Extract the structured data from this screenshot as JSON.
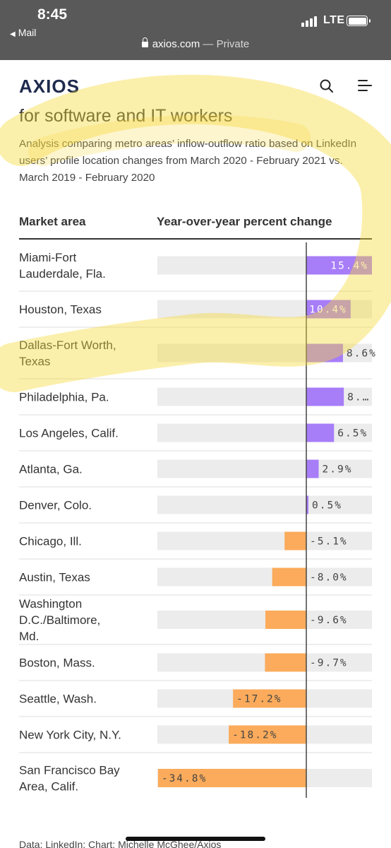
{
  "status_bar": {
    "time": "8:45",
    "back_label": "Mail",
    "network": "LTE"
  },
  "url_bar": {
    "domain": "axios.com",
    "separator": "—",
    "mode": "Private"
  },
  "site": {
    "logo": "AXIOS"
  },
  "chart_data": {
    "type": "bar",
    "orientation": "horizontal",
    "title": "for software and IT workers",
    "subtitle": "Analysis comparing metro areas’ inflow-outflow ratio based on LinkedIn users’ profile location changes from March 2020 - February 2021 vs. March 2019 - February 2020",
    "column_headers": [
      "Market area",
      "Year-over-year percent change"
    ],
    "categories": [
      "Miami-Fort Lauderdale, Fla.",
      "Houston, Texas",
      "Dallas-Fort Worth, Texas",
      "Philadelphia, Pa.",
      "Los Angeles, Calif.",
      "Atlanta, Ga.",
      "Denver, Colo.",
      "Chicago, Ill.",
      "Austin, Texas",
      "Washington D.C./Baltimore, Md.",
      "Boston, Mass.",
      "Seattle, Wash.",
      "New York City, N.Y.",
      "San Francisco Bay Area, Calif."
    ],
    "category_lines": [
      [
        "Miami-Fort",
        "Lauderdale, Fla."
      ],
      [
        "Houston, Texas"
      ],
      [
        "Dallas-Fort Worth,",
        "Texas"
      ],
      [
        "Philadelphia, Pa."
      ],
      [
        "Los Angeles, Calif."
      ],
      [
        "Atlanta, Ga."
      ],
      [
        "Denver, Colo."
      ],
      [
        "Chicago, Ill."
      ],
      [
        "Austin, Texas"
      ],
      [
        "Washington",
        "D.C./Baltimore,",
        "Md."
      ],
      [
        "Boston, Mass."
      ],
      [
        "Seattle, Wash."
      ],
      [
        "New York City, N.Y."
      ],
      [
        "San Francisco Bay",
        "Area, Calif."
      ]
    ],
    "values": [
      15.4,
      10.4,
      8.6,
      8.8,
      6.5,
      2.9,
      0.5,
      -5.1,
      -8.0,
      -9.6,
      -9.7,
      -17.2,
      -18.2,
      -34.8
    ],
    "value_labels": [
      "15.4%",
      "10.4%",
      "8.6%",
      "8.…",
      "6.5%",
      "2.9%",
      "0.5%",
      "-5.1%",
      "-8.0%",
      "-9.6%",
      "-9.7%",
      "-17.2%",
      "-18.2%",
      "-34.8%"
    ],
    "xlim": [
      -34.8,
      15.4
    ],
    "colors": {
      "positive": "#a77df8",
      "negative": "#fbab5b",
      "track": "#ececec",
      "zero_line": "#444444"
    },
    "annotation": "yellow highlighter stroke over the first three rows",
    "source": "Data: LinkedIn; Chart: Michelle McGhee/Axios"
  }
}
